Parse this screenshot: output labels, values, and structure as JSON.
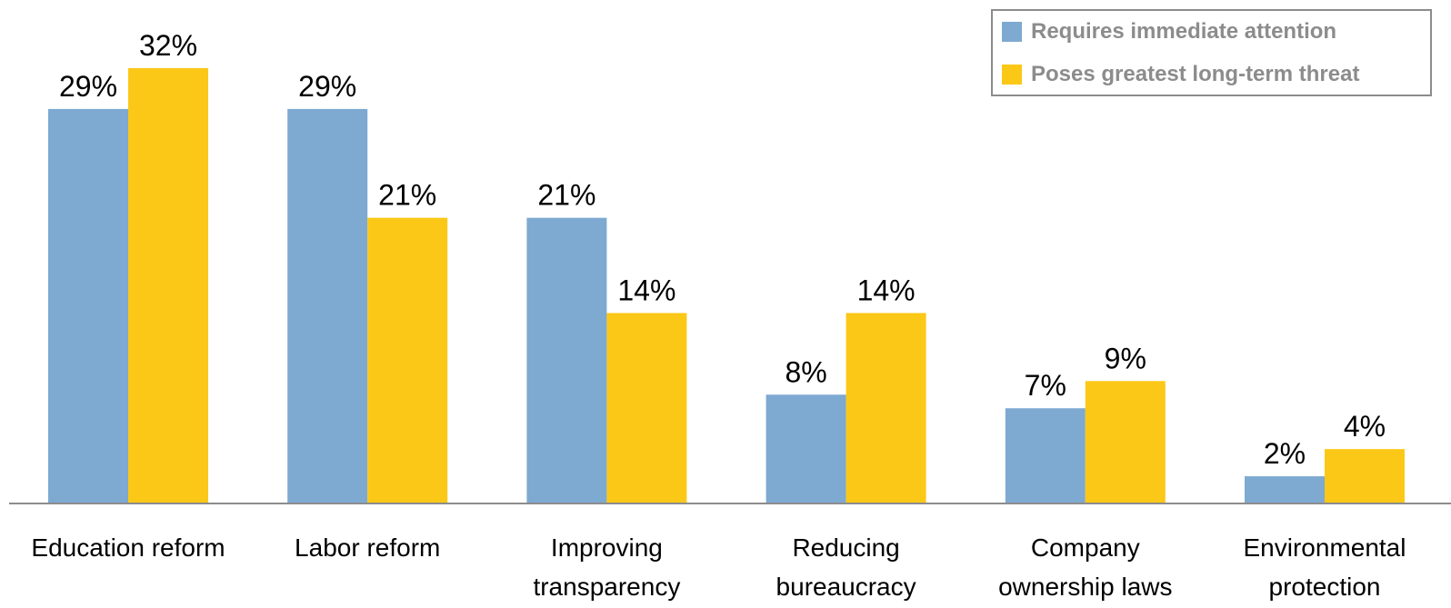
{
  "chart_data": {
    "type": "bar",
    "categories": [
      [
        "Education reform"
      ],
      [
        "Labor reform"
      ],
      [
        "Improving",
        "transparency"
      ],
      [
        "Reducing",
        "bureaucracy"
      ],
      [
        "Company",
        "ownership laws"
      ],
      [
        "Environmental",
        "protection"
      ]
    ],
    "series": [
      {
        "name": "Requires immediate attention",
        "color": "#7ea9d1",
        "values": [
          29,
          29,
          21,
          8,
          7,
          2
        ],
        "labels": [
          "29%",
          "29%",
          "21%",
          "8%",
          "7%",
          "2%"
        ]
      },
      {
        "name": "Poses greatest long-term threat",
        "color": "#fbc817",
        "values": [
          32,
          21,
          14,
          14,
          9,
          4
        ],
        "labels": [
          "32%",
          "21%",
          "14%",
          "14%",
          "9%",
          "4%"
        ]
      }
    ],
    "value_format": "percent",
    "legend_position": "top-right",
    "grid": false,
    "ylim": [
      0,
      32
    ]
  }
}
